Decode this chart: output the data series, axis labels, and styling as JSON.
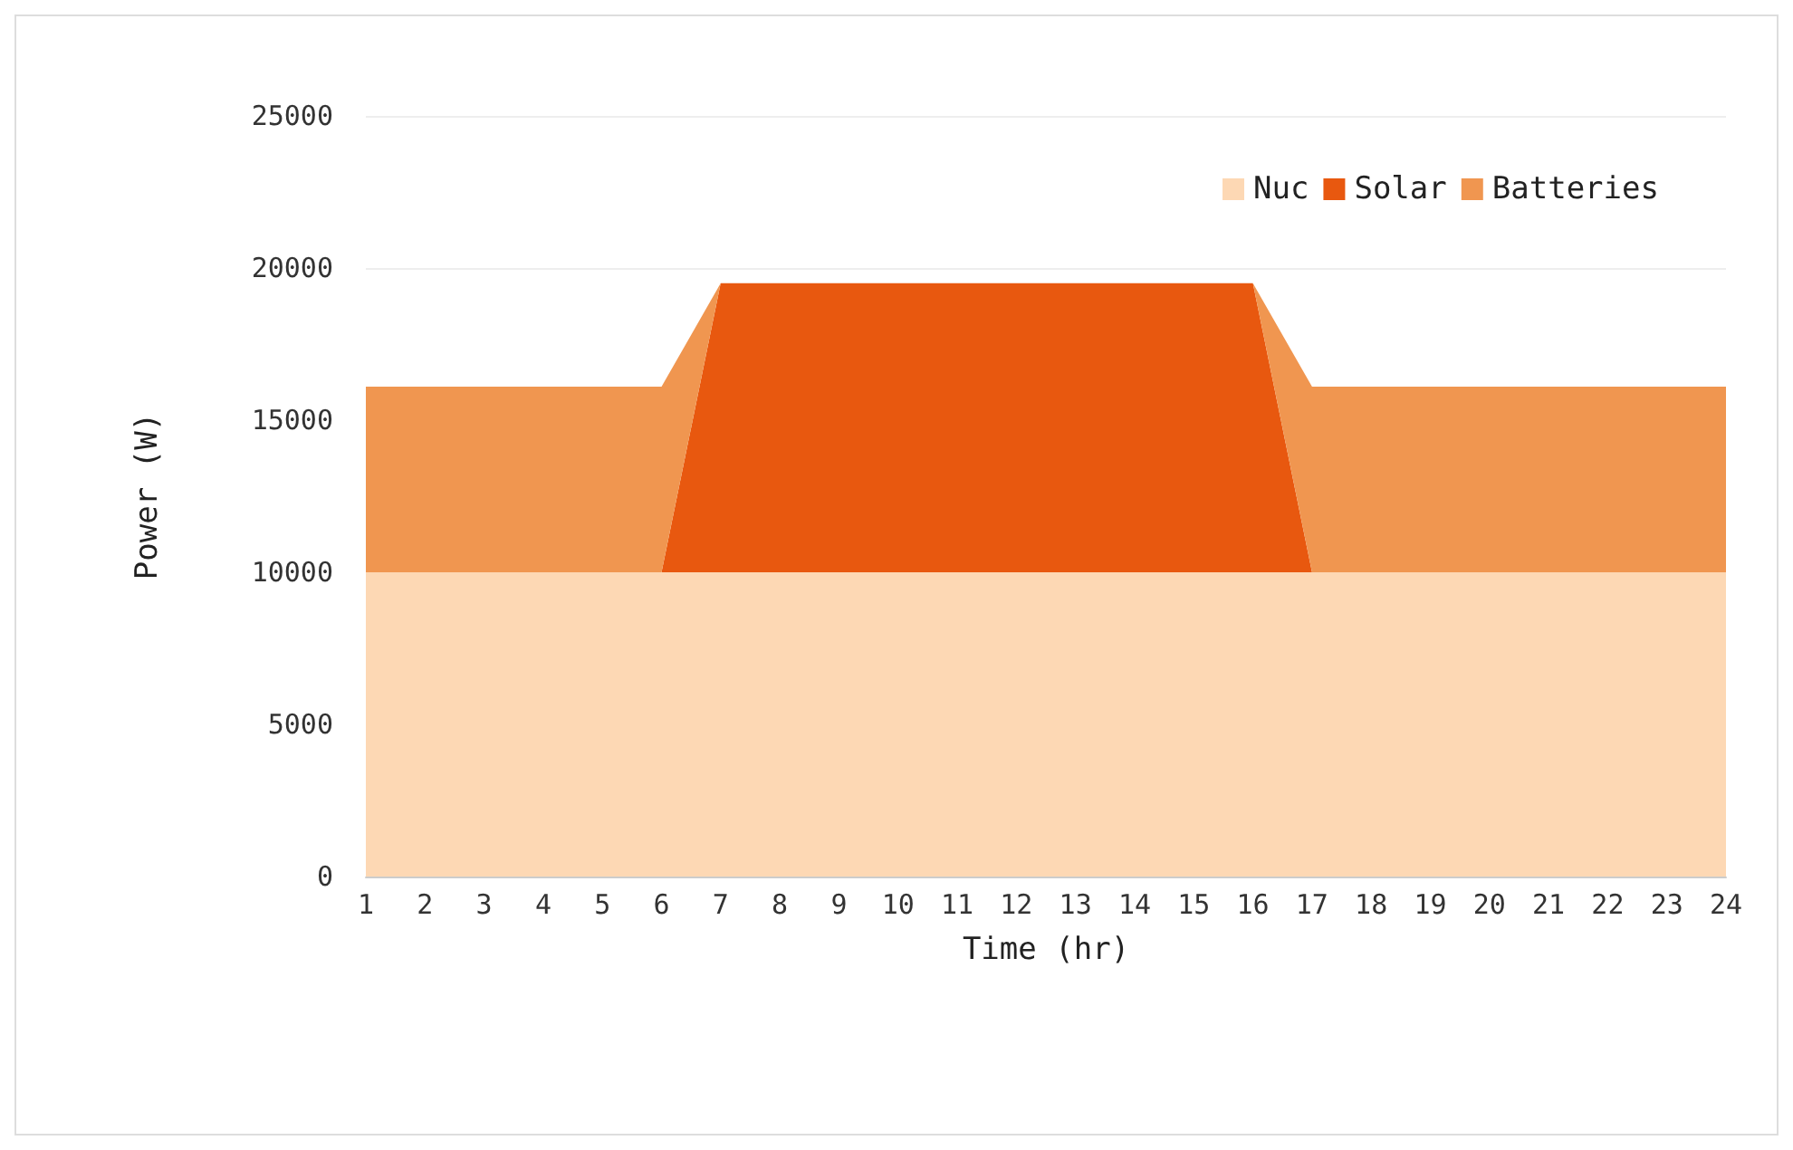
{
  "chart_data": {
    "type": "area",
    "stacked": true,
    "xlabel": "Time (hr)",
    "ylabel": "Power (W)",
    "x": [
      1,
      2,
      3,
      4,
      5,
      6,
      7,
      8,
      9,
      10,
      11,
      12,
      13,
      14,
      15,
      16,
      17,
      18,
      19,
      20,
      21,
      22,
      23,
      24
    ],
    "series": [
      {
        "name": "Nuc",
        "color": "#fdd8b4",
        "values": [
          10000,
          10000,
          10000,
          10000,
          10000,
          10000,
          10000,
          10000,
          10000,
          10000,
          10000,
          10000,
          10000,
          10000,
          10000,
          10000,
          10000,
          10000,
          10000,
          10000,
          10000,
          10000,
          10000,
          10000
        ]
      },
      {
        "name": "Solar",
        "color": "#e8580f",
        "values": [
          0,
          0,
          0,
          0,
          0,
          0,
          9500,
          9500,
          9500,
          9500,
          9500,
          9500,
          9500,
          9500,
          9500,
          9500,
          0,
          0,
          0,
          0,
          0,
          0,
          0,
          0
        ]
      },
      {
        "name": "Batteries",
        "color": "#f09650",
        "values": [
          6100,
          6100,
          6100,
          6100,
          6100,
          6100,
          0,
          null,
          null,
          null,
          null,
          null,
          null,
          null,
          null,
          0,
          6100,
          6100,
          6100,
          6100,
          6100,
          6100,
          6100,
          6100
        ]
      }
    ],
    "xlim": [
      1,
      24
    ],
    "xticks": [
      1,
      2,
      3,
      4,
      5,
      6,
      7,
      8,
      9,
      10,
      11,
      12,
      13,
      14,
      15,
      16,
      17,
      18,
      19,
      20,
      21,
      22,
      23,
      24
    ],
    "ylim": [
      0,
      25000
    ],
    "yticks": [
      0,
      5000,
      10000,
      15000,
      20000,
      25000
    ],
    "grid": "y",
    "legend": "top right"
  }
}
